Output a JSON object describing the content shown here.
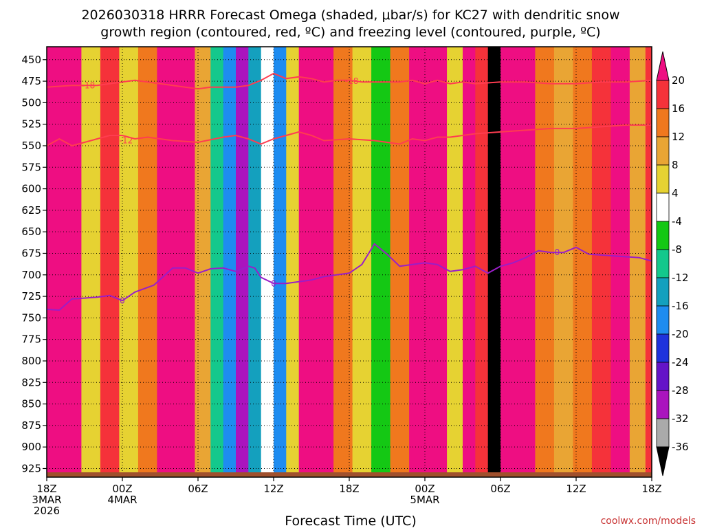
{
  "chart_data": {
    "type": "heatmap",
    "title_line1": "2026030318 HRRR Forecast Omega (shaded, μbar/s) for KC27 with dendritic snow",
    "title_line2": "growth region (contoured, red, ºC) and freezing level (contoured, purple, ºC)",
    "xlabel": "Forecast Time (UTC)",
    "ylabel": "",
    "x_hours_range": [
      0,
      48
    ],
    "y_pressure_range": [
      435,
      935
    ],
    "x_ticks": [
      {
        "hour": 0,
        "label": "18Z",
        "line2": "3MAR",
        "line3": "2026"
      },
      {
        "hour": 6,
        "label": "00Z",
        "line2": "4MAR",
        "line3": ""
      },
      {
        "hour": 12,
        "label": "06Z",
        "line2": "",
        "line3": ""
      },
      {
        "hour": 18,
        "label": "12Z",
        "line2": "",
        "line3": ""
      },
      {
        "hour": 24,
        "label": "18Z",
        "line2": "",
        "line3": ""
      },
      {
        "hour": 30,
        "label": "00Z",
        "line2": "5MAR",
        "line3": ""
      },
      {
        "hour": 36,
        "label": "06Z",
        "line2": "",
        "line3": ""
      },
      {
        "hour": 42,
        "label": "12Z",
        "line2": "",
        "line3": ""
      },
      {
        "hour": 48,
        "label": "18Z",
        "line2": "",
        "line3": ""
      }
    ],
    "y_ticks": [
      450,
      475,
      500,
      525,
      550,
      575,
      600,
      625,
      650,
      675,
      700,
      725,
      750,
      775,
      800,
      825,
      850,
      875,
      900,
      925
    ],
    "colorbar": {
      "labels": [
        "20",
        "16",
        "12",
        "8",
        "4",
        "-4",
        "-8",
        "-12",
        "-16",
        "-20",
        "-24",
        "-28",
        "-32",
        "-36"
      ],
      "bands": [
        {
          "lo": 20,
          "hi": 24,
          "color": "#ee0e82"
        },
        {
          "lo": 16,
          "hi": 20,
          "color": "#f5323a"
        },
        {
          "lo": 12,
          "hi": 16,
          "color": "#f0781e"
        },
        {
          "lo": 8,
          "hi": 12,
          "color": "#e9a534"
        },
        {
          "lo": 4,
          "hi": 8,
          "color": "#e6d232"
        },
        {
          "lo": -4,
          "hi": 4,
          "color": "#ffffff"
        },
        {
          "lo": -8,
          "hi": -4,
          "color": "#14c814"
        },
        {
          "lo": -12,
          "hi": -8,
          "color": "#14c88c"
        },
        {
          "lo": -16,
          "hi": -12,
          "color": "#14a0be"
        },
        {
          "lo": -20,
          "hi": -16,
          "color": "#1e8cf0"
        },
        {
          "lo": -24,
          "hi": -20,
          "color": "#1e32dc"
        },
        {
          "lo": -28,
          "hi": -24,
          "color": "#6414c8"
        },
        {
          "lo": -32,
          "hi": -28,
          "color": "#aa14be"
        },
        {
          "lo": -36,
          "hi": -32,
          "color": "#aaaaaa"
        },
        {
          "lo": -40,
          "hi": -36,
          "color": "#000000"
        }
      ]
    },
    "columns": [
      {
        "hour": 0.0,
        "mag": 22
      },
      {
        "hour": 1.0,
        "mag": 24
      },
      {
        "hour": 2.0,
        "mag": 22
      },
      {
        "hour": 3.5,
        "mag": 6
      },
      {
        "hour": 5.0,
        "mag": 16
      },
      {
        "hour": 6.5,
        "mag": 4
      },
      {
        "hour": 8.0,
        "mag": 12
      },
      {
        "hour": 9.5,
        "mag": 22
      },
      {
        "hour": 11.0,
        "mag": 24
      },
      {
        "hour": 12.5,
        "mag": 10
      },
      {
        "hour": 13.5,
        "mag": -10
      },
      {
        "hour": 14.5,
        "mag": -20
      },
      {
        "hour": 15.5,
        "mag": -30
      },
      {
        "hour": 16.5,
        "mag": -14
      },
      {
        "hour": 17.5,
        "mag": 2
      },
      {
        "hour": 18.5,
        "mag": -20
      },
      {
        "hour": 19.5,
        "mag": 4
      },
      {
        "hour": 20.5,
        "mag": 22
      },
      {
        "hour": 22.0,
        "mag": 24
      },
      {
        "hour": 23.5,
        "mag": 14
      },
      {
        "hour": 25.0,
        "mag": 6
      },
      {
        "hour": 26.5,
        "mag": -6
      },
      {
        "hour": 28.0,
        "mag": 12
      },
      {
        "hour": 29.5,
        "mag": 22
      },
      {
        "hour": 31.0,
        "mag": 24
      },
      {
        "hour": 32.5,
        "mag": 4
      },
      {
        "hour": 33.5,
        "mag": 24
      },
      {
        "hour": 34.5,
        "mag": 16
      },
      {
        "hour": 35.5,
        "mag": -38
      },
      {
        "hour": 36.5,
        "mag": 20
      },
      {
        "hour": 38.0,
        "mag": 24
      },
      {
        "hour": 39.5,
        "mag": 14
      },
      {
        "hour": 41.0,
        "mag": 10
      },
      {
        "hour": 42.5,
        "mag": 12
      },
      {
        "hour": 44.0,
        "mag": 16
      },
      {
        "hour": 45.5,
        "mag": 24
      },
      {
        "hour": 47.0,
        "mag": 10
      },
      {
        "hour": 48.0,
        "mag": 16
      }
    ],
    "freezing_level": {
      "color": "#9a1ec8",
      "label": "0",
      "points": [
        [
          0,
          740
        ],
        [
          1,
          741
        ],
        [
          2,
          728
        ],
        [
          4,
          726
        ],
        [
          5,
          724
        ],
        [
          6,
          730
        ],
        [
          7,
          720
        ],
        [
          8.5,
          712
        ],
        [
          10,
          692
        ],
        [
          11,
          692
        ],
        [
          12,
          698
        ],
        [
          13,
          693
        ],
        [
          14,
          692
        ],
        [
          15,
          696
        ],
        [
          16,
          690
        ],
        [
          16.5,
          692
        ],
        [
          17,
          703
        ],
        [
          18,
          710
        ],
        [
          19,
          710
        ],
        [
          20,
          708
        ],
        [
          21,
          706
        ],
        [
          22,
          702
        ],
        [
          23,
          700
        ],
        [
          24,
          698
        ],
        [
          25,
          688
        ],
        [
          26,
          664
        ],
        [
          27,
          676
        ],
        [
          28,
          690
        ],
        [
          29,
          688
        ],
        [
          30,
          686
        ],
        [
          31,
          688
        ],
        [
          32,
          696
        ],
        [
          33,
          694
        ],
        [
          34,
          690
        ],
        [
          35,
          698
        ],
        [
          36,
          690
        ],
        [
          37,
          686
        ],
        [
          38,
          680
        ],
        [
          39,
          672
        ],
        [
          40,
          674
        ],
        [
          41,
          674
        ],
        [
          42,
          668
        ],
        [
          43,
          676
        ],
        [
          45,
          678
        ],
        [
          47,
          680
        ],
        [
          48,
          684
        ]
      ],
      "label_positions": [
        [
          6,
          730
        ],
        [
          18,
          710
        ],
        [
          40.5,
          674
        ]
      ]
    },
    "dgz_upper": {
      "color": "#ff3c50",
      "label": "-18",
      "points": [
        [
          0,
          482
        ],
        [
          2,
          480
        ],
        [
          4,
          480
        ],
        [
          5,
          478
        ],
        [
          7,
          474
        ],
        [
          8,
          476
        ],
        [
          10,
          480
        ],
        [
          12,
          484
        ],
        [
          13,
          482
        ],
        [
          15,
          482
        ],
        [
          16,
          480
        ],
        [
          17,
          474
        ],
        [
          18,
          466
        ],
        [
          19,
          472
        ],
        [
          20,
          470
        ],
        [
          21,
          472
        ],
        [
          22,
          476
        ],
        [
          23,
          474
        ],
        [
          24,
          474
        ],
        [
          25,
          476
        ],
        [
          26,
          476
        ],
        [
          28,
          476
        ],
        [
          29,
          474
        ],
        [
          30,
          478
        ],
        [
          31,
          474
        ],
        [
          32,
          478
        ],
        [
          33,
          476
        ],
        [
          34,
          478
        ],
        [
          36,
          476
        ],
        [
          38,
          476
        ],
        [
          40,
          478
        ],
        [
          42,
          478
        ],
        [
          44,
          476
        ],
        [
          46,
          476
        ],
        [
          48,
          474
        ]
      ],
      "label_positions": [
        [
          3.3,
          480
        ],
        [
          24.2,
          475
        ]
      ]
    },
    "dgz_lower": {
      "color": "#ff3c50",
      "label": "-12",
      "points": [
        [
          0,
          550
        ],
        [
          1,
          542
        ],
        [
          2,
          550
        ],
        [
          3,
          546
        ],
        [
          4,
          542
        ],
        [
          5,
          538
        ],
        [
          6,
          538
        ],
        [
          7,
          542
        ],
        [
          8,
          540
        ],
        [
          10,
          544
        ],
        [
          12,
          546
        ],
        [
          14,
          540
        ],
        [
          15,
          538
        ],
        [
          16,
          542
        ],
        [
          17,
          548
        ],
        [
          18,
          542
        ],
        [
          19,
          538
        ],
        [
          20,
          534
        ],
        [
          21,
          538
        ],
        [
          22,
          544
        ],
        [
          24,
          542
        ],
        [
          26,
          544
        ],
        [
          27,
          546
        ],
        [
          28,
          548
        ],
        [
          29,
          542
        ],
        [
          30,
          544
        ],
        [
          31,
          540
        ],
        [
          32,
          540
        ],
        [
          34,
          536
        ],
        [
          36,
          534
        ],
        [
          38,
          532
        ],
        [
          40,
          530
        ],
        [
          42,
          530
        ],
        [
          44,
          528
        ],
        [
          46,
          526
        ],
        [
          48,
          526
        ]
      ],
      "label_positions": [
        [
          6.3,
          544
        ]
      ]
    },
    "terrain_color": "#a0502d",
    "watermark": "coolwx.com/models"
  }
}
